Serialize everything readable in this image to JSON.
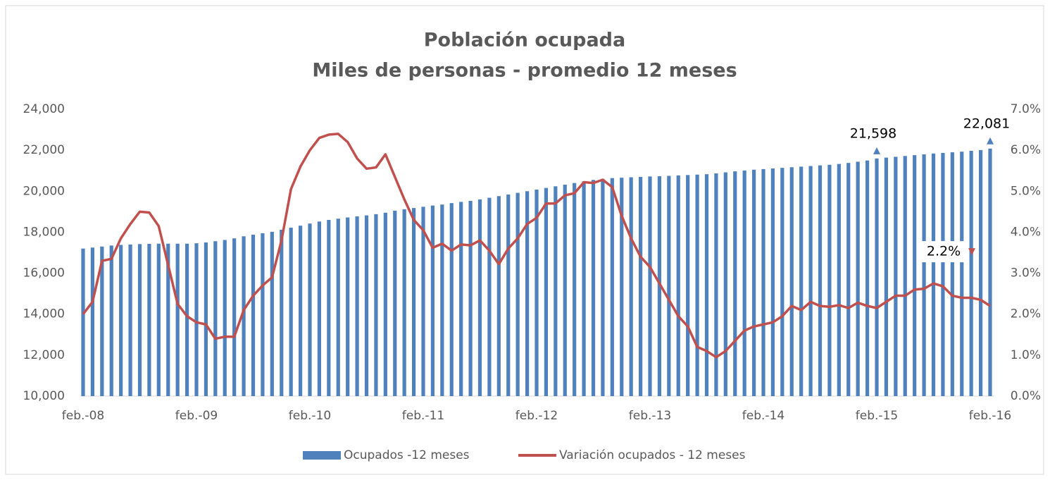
{
  "chart_data": {
    "type": "bar_line",
    "title": "Población ocupada",
    "subtitle": "Miles de personas - promedio 12 meses",
    "categories": [
      "feb.-08",
      null,
      null,
      null,
      null,
      null,
      null,
      null,
      null,
      null,
      null,
      null,
      "feb.-09",
      null,
      null,
      null,
      null,
      null,
      null,
      null,
      null,
      null,
      null,
      null,
      "feb.-10",
      null,
      null,
      null,
      null,
      null,
      null,
      null,
      null,
      null,
      null,
      null,
      "feb.-11",
      null,
      null,
      null,
      null,
      null,
      null,
      null,
      null,
      null,
      null,
      null,
      "feb.-12",
      null,
      null,
      null,
      null,
      null,
      null,
      null,
      null,
      null,
      null,
      null,
      "feb.-13",
      null,
      null,
      null,
      null,
      null,
      null,
      null,
      null,
      null,
      null,
      null,
      "feb.-14",
      null,
      null,
      null,
      null,
      null,
      null,
      null,
      null,
      null,
      null,
      null,
      "feb.-15",
      null,
      null,
      null,
      null,
      null,
      null,
      null,
      null,
      null,
      null,
      null,
      "feb.-16"
    ],
    "series": [
      {
        "name": "Ocupados -12 meses",
        "type": "bar",
        "color": "#4f81bd",
        "values": [
          17200,
          17250,
          17300,
          17350,
          17380,
          17400,
          17420,
          17430,
          17440,
          17440,
          17440,
          17440,
          17460,
          17500,
          17560,
          17620,
          17700,
          17800,
          17880,
          17950,
          18020,
          18120,
          18220,
          18320,
          18420,
          18520,
          18600,
          18660,
          18720,
          18770,
          18820,
          18880,
          18950,
          19050,
          19120,
          19180,
          19240,
          19300,
          19350,
          19420,
          19480,
          19530,
          19600,
          19680,
          19760,
          19840,
          19920,
          20000,
          20080,
          20160,
          20240,
          20320,
          20400,
          20480,
          20550,
          20600,
          20640,
          20660,
          20680,
          20700,
          20720,
          20730,
          20750,
          20770,
          20790,
          20810,
          20830,
          20870,
          20920,
          20970,
          21010,
          21050,
          21080,
          21110,
          21140,
          21170,
          21200,
          21230,
          21260,
          21290,
          21330,
          21380,
          21440,
          21500,
          21598,
          21640,
          21680,
          21720,
          21760,
          21800,
          21840,
          21870,
          21900,
          21930,
          21970,
          22010,
          22081
        ],
        "value_labels": [
          null,
          null,
          null,
          null,
          null,
          null,
          null,
          null,
          null,
          null,
          null,
          null,
          null,
          null,
          null,
          null,
          null,
          null,
          null,
          null,
          null,
          null,
          null,
          null,
          null,
          null,
          null,
          null,
          null,
          null,
          null,
          null,
          null,
          null,
          null,
          null,
          null,
          null,
          null,
          null,
          null,
          null,
          null,
          null,
          null,
          null,
          null,
          null,
          null,
          null,
          null,
          null,
          null,
          null,
          null,
          null,
          null,
          null,
          null,
          null,
          null,
          null,
          null,
          null,
          null,
          null,
          null,
          null,
          null,
          null,
          null,
          null,
          null,
          null,
          null,
          null,
          null,
          null,
          null,
          null,
          null,
          null,
          null,
          null,
          "21,598",
          null,
          null,
          null,
          null,
          null,
          null,
          null,
          null,
          null,
          null,
          null,
          "22,081"
        ]
      },
      {
        "name": "Variación ocupados - 12 meses",
        "type": "line",
        "axis": "y2",
        "color": "#c0504d",
        "values": [
          2.0,
          2.3,
          3.3,
          3.35,
          3.85,
          4.2,
          4.5,
          4.48,
          4.15,
          3.2,
          2.25,
          1.95,
          1.8,
          1.75,
          1.4,
          1.45,
          1.45,
          2.1,
          2.45,
          2.7,
          2.9,
          3.8,
          5.05,
          5.6,
          6.0,
          6.3,
          6.38,
          6.4,
          6.2,
          5.8,
          5.55,
          5.58,
          5.9,
          5.35,
          4.8,
          4.3,
          4.05,
          3.62,
          3.72,
          3.55,
          3.7,
          3.68,
          3.8,
          3.55,
          3.22,
          3.6,
          3.85,
          4.2,
          4.35,
          4.7,
          4.7,
          4.9,
          4.95,
          5.22,
          5.2,
          5.28,
          5.1,
          4.4,
          3.85,
          3.4,
          3.15,
          2.75,
          2.35,
          1.95,
          1.7,
          1.2,
          1.1,
          0.95,
          1.1,
          1.35,
          1.6,
          1.7,
          1.75,
          1.8,
          1.95,
          2.2,
          2.1,
          2.3,
          2.2,
          2.18,
          2.22,
          2.15,
          2.28,
          2.2,
          2.15,
          2.3,
          2.45,
          2.45,
          2.6,
          2.62,
          2.75,
          2.68,
          2.45,
          2.4,
          2.4,
          2.35,
          2.2
        ],
        "value_labels": [
          null,
          null,
          null,
          null,
          null,
          null,
          null,
          null,
          null,
          null,
          null,
          null,
          null,
          null,
          null,
          null,
          null,
          null,
          null,
          null,
          null,
          null,
          null,
          null,
          null,
          null,
          null,
          null,
          null,
          null,
          null,
          null,
          null,
          null,
          null,
          null,
          null,
          null,
          null,
          null,
          null,
          null,
          null,
          null,
          null,
          null,
          null,
          null,
          null,
          null,
          null,
          null,
          null,
          null,
          null,
          null,
          null,
          null,
          null,
          null,
          null,
          null,
          null,
          null,
          null,
          null,
          null,
          null,
          null,
          null,
          null,
          null,
          null,
          null,
          null,
          null,
          null,
          null,
          null,
          null,
          null,
          null,
          null,
          null,
          null,
          null,
          null,
          null,
          null,
          null,
          null,
          null,
          null,
          null,
          null,
          null,
          "2.2%"
        ]
      }
    ],
    "ylim": [
      10000,
      24000
    ],
    "yticks": [
      {
        "value": 10000,
        "label": "10,000"
      },
      {
        "value": 12000,
        "label": "12,000"
      },
      {
        "value": 14000,
        "label": "14,000"
      },
      {
        "value": 16000,
        "label": "16,000"
      },
      {
        "value": 18000,
        "label": "18,000"
      },
      {
        "value": 20000,
        "label": "20,000"
      },
      {
        "value": 22000,
        "label": "22,000"
      },
      {
        "value": 24000,
        "label": "24,000"
      }
    ],
    "y2lim": [
      0,
      7
    ],
    "y2ticks": [
      {
        "value": 0,
        "label": "0.0%"
      },
      {
        "value": 1,
        "label": "1.0%"
      },
      {
        "value": 2,
        "label": "2.0%"
      },
      {
        "value": 3,
        "label": "3.0%"
      },
      {
        "value": 4,
        "label": "4.0%"
      },
      {
        "value": 5,
        "label": "5.0%"
      },
      {
        "value": 6,
        "label": "6.0%"
      },
      {
        "value": 7,
        "label": "7.0%"
      }
    ],
    "legend": "bottom"
  }
}
